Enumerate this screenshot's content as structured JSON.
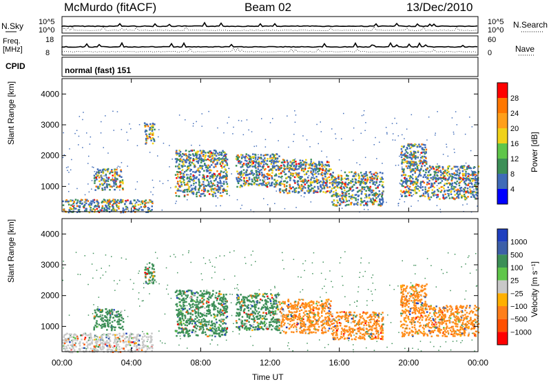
{
  "header": {
    "station": "McMurdo (fitACF)",
    "beam": "Beam 02",
    "date": "13/Dec/2010"
  },
  "top_panels": {
    "nsky_label": "N.Sky",
    "nsky_ticks": [
      "10^5",
      "10^0"
    ],
    "nsearch_label": "N.Search",
    "nsearch_ticks": [
      "10^5",
      "10^0"
    ],
    "freq_label": "Freq.",
    "freq_unit": "[MHz]",
    "freq_ticks": [
      "18",
      "8"
    ],
    "nave_label": "Nave",
    "nave_ticks": [
      "60",
      "0"
    ],
    "cpid_label": "CPID",
    "cpid_value": "normal (fast) 151"
  },
  "chart_data": [
    {
      "type": "heatmap",
      "name": "power",
      "ylabel": "Slant Range [km]",
      "yticks": [
        "4000",
        "3000",
        "2000",
        "1000"
      ],
      "ylim": [
        180,
        4500
      ],
      "xlim": [
        0,
        24
      ],
      "colorbar_label": "Power [dB]",
      "colorbar_ticks": [
        "28",
        "24",
        "20",
        "16",
        "12",
        "8",
        "4"
      ],
      "colorbar_colors": [
        "#ff0000",
        "#ff7700",
        "#ff9f1a",
        "#f0d21a",
        "#5fc64a",
        "#3c8f57",
        "#3f6bb8",
        "#0000ff"
      ],
      "echo_regions": [
        {
          "t0": 0.0,
          "t1": 5.2,
          "r0": 180,
          "r1": 600
        },
        {
          "t0": 1.8,
          "t1": 3.5,
          "r0": 900,
          "r1": 1600
        },
        {
          "t0": 4.7,
          "t1": 5.3,
          "r0": 2400,
          "r1": 3100
        },
        {
          "t0": 6.5,
          "t1": 9.5,
          "r0": 700,
          "r1": 2200
        },
        {
          "t0": 10.0,
          "t1": 12.5,
          "r0": 1000,
          "r1": 2100
        },
        {
          "t0": 12.5,
          "t1": 15.5,
          "r0": 800,
          "r1": 1900
        },
        {
          "t0": 15.5,
          "t1": 18.5,
          "r0": 400,
          "r1": 1500
        },
        {
          "t0": 19.5,
          "t1": 21.0,
          "r0": 700,
          "r1": 2400
        },
        {
          "t0": 21.0,
          "t1": 24.0,
          "r0": 600,
          "r1": 1700
        }
      ]
    },
    {
      "type": "heatmap",
      "name": "velocity",
      "ylabel": "Slant Range [km]",
      "yticks": [
        "4000",
        "3000",
        "2000",
        "1000"
      ],
      "ylim": [
        180,
        4500
      ],
      "xlim": [
        0,
        24
      ],
      "colorbar_label": "Velocity [m s⁻¹]",
      "colorbar_ticks": [
        "1000",
        "500",
        "100",
        "25",
        "−25",
        "−100",
        "−500",
        "−1000"
      ],
      "colorbar_colors": [
        "#1f3fbf",
        "#3c5fa8",
        "#3c8f57",
        "#5fc64a",
        "#c8c8c8",
        "#ffb000",
        "#ff7f1a",
        "#ff5000",
        "#ff0000"
      ],
      "echo_regions": [
        {
          "t0": 0.0,
          "t1": 5.2,
          "r0": 180,
          "r1": 800,
          "color": "#c8c8c8"
        },
        {
          "t0": 1.8,
          "t1": 3.5,
          "r0": 900,
          "r1": 1600,
          "color": "#3c8f57"
        },
        {
          "t0": 4.7,
          "t1": 5.3,
          "r0": 2400,
          "r1": 3100,
          "color": "#3c8f57"
        },
        {
          "t0": 6.5,
          "t1": 9.5,
          "r0": 700,
          "r1": 2200,
          "color": "#3c8f57"
        },
        {
          "t0": 10.0,
          "t1": 12.5,
          "r0": 900,
          "r1": 2100,
          "color": "#3c8f57"
        },
        {
          "t0": 12.5,
          "t1": 15.5,
          "r0": 800,
          "r1": 1900,
          "color": "#ff8c1a"
        },
        {
          "t0": 15.5,
          "t1": 18.5,
          "r0": 600,
          "r1": 1500,
          "color": "#ff8c1a"
        },
        {
          "t0": 19.5,
          "t1": 21.0,
          "r0": 700,
          "r1": 2400,
          "color": "#ff8c1a"
        },
        {
          "t0": 21.0,
          "t1": 24.0,
          "r0": 700,
          "r1": 1700,
          "color": "#ff8c1a"
        }
      ]
    }
  ],
  "x_axis": {
    "label": "Time UT",
    "ticks": [
      "00:00",
      "04:00",
      "08:00",
      "12:00",
      "16:00",
      "20:00",
      "00:00"
    ]
  }
}
